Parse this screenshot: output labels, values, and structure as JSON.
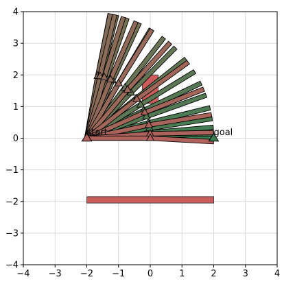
{
  "chart_data": {
    "type": "scatter",
    "title": "",
    "xlabel": "",
    "ylabel": "",
    "xlim": [
      -4,
      4
    ],
    "ylim": [
      -4,
      4
    ],
    "grid": true,
    "xticks": [
      "−4",
      "−3",
      "−2",
      "−1",
      "0",
      "1",
      "2",
      "3",
      "4"
    ],
    "yticks": [
      "−4",
      "−3",
      "−2",
      "−1",
      "0",
      "1",
      "2",
      "3",
      "4"
    ],
    "colors": {
      "obstacle": "#cd5c5c",
      "outline": "#000000",
      "grid": "#d9d9d9",
      "green": "#3b7f52",
      "brown": "#b2625c"
    },
    "obstacles": [
      {
        "x": -0.25,
        "y": 1.1,
        "width": 0.5,
        "height": 0.9
      },
      {
        "x": -2.0,
        "y": -2.05,
        "width": 4.0,
        "height": 0.2
      }
    ],
    "start": {
      "x": -2.0,
      "y": 0.0
    },
    "goal": {
      "x": 2.0,
      "y": 0.0
    },
    "annotations": [
      {
        "text": "start",
        "x": -2.0,
        "y": 0.1
      },
      {
        "text": "goal",
        "x": 2.0,
        "y": 0.1
      }
    ],
    "arm_configurations": {
      "base": {
        "x": -2.0,
        "y": 0.0
      },
      "link_lengths": [
        2.0,
        2.0
      ],
      "angles_deg": [
        [
          0,
          0
        ],
        [
          2,
          6
        ],
        [
          5,
          14
        ],
        [
          9,
          22
        ],
        [
          14,
          30
        ],
        [
          20,
          38
        ],
        [
          26,
          46
        ],
        [
          32,
          54
        ],
        [
          39,
          62
        ],
        [
          46,
          70
        ],
        [
          53,
          80
        ],
        [
          60,
          90
        ],
        [
          66,
          100
        ],
        [
          72,
          112
        ],
        [
          77,
          124
        ],
        [
          80,
          135
        ],
        [
          80,
          150
        ],
        [
          78,
          165
        ],
        [
          74,
          180
        ],
        [
          68,
          195
        ],
        [
          60,
          212
        ],
        [
          50,
          230
        ],
        [
          38,
          250
        ],
        [
          24,
          275
        ],
        [
          12,
          300
        ],
        [
          4,
          330
        ],
        [
          0,
          360
        ]
      ]
    }
  }
}
